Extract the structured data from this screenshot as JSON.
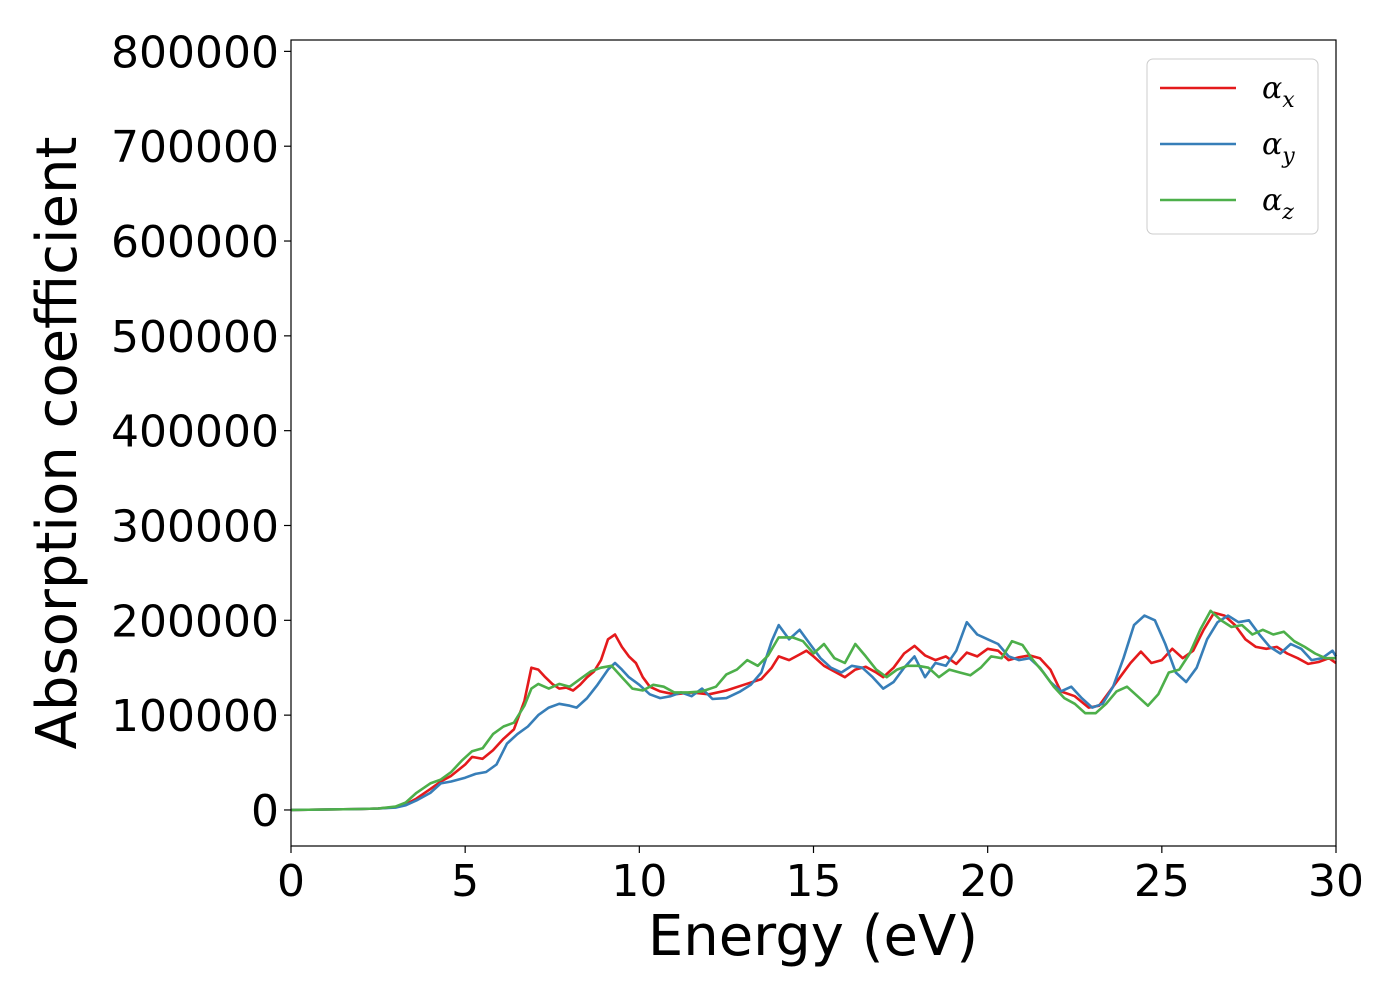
{
  "chart_data": {
    "type": "line",
    "xlabel": "Energy (eV)",
    "ylabel": "Absorption coefficient",
    "xlim": [
      0,
      30
    ],
    "ylim": [
      -38000,
      812000
    ],
    "x_ticks": [
      0,
      5,
      10,
      15,
      20,
      25,
      30
    ],
    "x_tick_labels": [
      "0",
      "5",
      "10",
      "15",
      "20",
      "25",
      "30"
    ],
    "y_ticks": [
      0,
      100000,
      200000,
      300000,
      400000,
      500000,
      600000,
      700000,
      800000
    ],
    "y_tick_labels": [
      "0",
      "100000",
      "200000",
      "300000",
      "400000",
      "500000",
      "600000",
      "700000",
      "800000"
    ],
    "grid": false,
    "legend_position": "top-right",
    "series": [
      {
        "name": "αx",
        "name_base": "α",
        "name_sub": "x",
        "color": "#e41a1c",
        "points": [
          [
            0,
            0
          ],
          [
            1,
            500
          ],
          [
            2,
            1000
          ],
          [
            2.5,
            1500
          ],
          [
            3,
            3000
          ],
          [
            3.3,
            6000
          ],
          [
            3.6,
            12000
          ],
          [
            4,
            22000
          ],
          [
            4.3,
            30000
          ],
          [
            4.6,
            36000
          ],
          [
            5,
            48000
          ],
          [
            5.2,
            56000
          ],
          [
            5.5,
            54000
          ],
          [
            5.8,
            63000
          ],
          [
            6.1,
            75000
          ],
          [
            6.4,
            85000
          ],
          [
            6.7,
            115000
          ],
          [
            6.9,
            150000
          ],
          [
            7.1,
            148000
          ],
          [
            7.3,
            140000
          ],
          [
            7.5,
            133000
          ],
          [
            7.7,
            128000
          ],
          [
            7.9,
            129000
          ],
          [
            8.1,
            126000
          ],
          [
            8.3,
            132000
          ],
          [
            8.5,
            140000
          ],
          [
            8.7,
            146000
          ],
          [
            8.9,
            158000
          ],
          [
            9.1,
            180000
          ],
          [
            9.3,
            185000
          ],
          [
            9.5,
            172000
          ],
          [
            9.7,
            162000
          ],
          [
            9.9,
            155000
          ],
          [
            10.1,
            140000
          ],
          [
            10.3,
            130000
          ],
          [
            10.6,
            125000
          ],
          [
            11,
            122000
          ],
          [
            11.5,
            124000
          ],
          [
            12,
            122000
          ],
          [
            12.5,
            126000
          ],
          [
            13,
            132000
          ],
          [
            13.5,
            138000
          ],
          [
            13.8,
            150000
          ],
          [
            14,
            162000
          ],
          [
            14.3,
            158000
          ],
          [
            14.6,
            164000
          ],
          [
            14.8,
            168000
          ],
          [
            15,
            162000
          ],
          [
            15.3,
            152000
          ],
          [
            15.6,
            146000
          ],
          [
            15.9,
            140000
          ],
          [
            16.2,
            148000
          ],
          [
            16.5,
            151000
          ],
          [
            16.8,
            145000
          ],
          [
            17,
            140000
          ],
          [
            17.3,
            150000
          ],
          [
            17.6,
            165000
          ],
          [
            17.9,
            173000
          ],
          [
            18.2,
            163000
          ],
          [
            18.5,
            158000
          ],
          [
            18.8,
            162000
          ],
          [
            19.1,
            154000
          ],
          [
            19.4,
            166000
          ],
          [
            19.7,
            162000
          ],
          [
            20,
            170000
          ],
          [
            20.3,
            168000
          ],
          [
            20.6,
            158000
          ],
          [
            20.9,
            161000
          ],
          [
            21.2,
            163000
          ],
          [
            21.5,
            160000
          ],
          [
            21.8,
            148000
          ],
          [
            22.1,
            125000
          ],
          [
            22.5,
            120000
          ],
          [
            22.9,
            108000
          ],
          [
            23.2,
            110000
          ],
          [
            23.5,
            125000
          ],
          [
            23.8,
            140000
          ],
          [
            24.1,
            155000
          ],
          [
            24.4,
            167000
          ],
          [
            24.7,
            155000
          ],
          [
            25,
            158000
          ],
          [
            25.3,
            170000
          ],
          [
            25.6,
            160000
          ],
          [
            25.9,
            168000
          ],
          [
            26.2,
            190000
          ],
          [
            26.5,
            208000
          ],
          [
            26.8,
            205000
          ],
          [
            27.1,
            195000
          ],
          [
            27.4,
            180000
          ],
          [
            27.7,
            172000
          ],
          [
            28,
            170000
          ],
          [
            28.3,
            172000
          ],
          [
            28.6,
            165000
          ],
          [
            28.9,
            160000
          ],
          [
            29.2,
            154000
          ],
          [
            29.5,
            156000
          ],
          [
            29.8,
            160000
          ],
          [
            30,
            155000
          ]
        ]
      },
      {
        "name": "αy",
        "name_base": "α",
        "name_sub": "y",
        "color": "#377eb8",
        "points": [
          [
            0,
            0
          ],
          [
            1,
            500
          ],
          [
            2,
            1000
          ],
          [
            2.5,
            1500
          ],
          [
            3,
            2500
          ],
          [
            3.3,
            5000
          ],
          [
            3.6,
            10000
          ],
          [
            4,
            18000
          ],
          [
            4.3,
            28000
          ],
          [
            4.6,
            30000
          ],
          [
            5,
            34000
          ],
          [
            5.3,
            38000
          ],
          [
            5.6,
            40000
          ],
          [
            5.9,
            48000
          ],
          [
            6.2,
            70000
          ],
          [
            6.5,
            80000
          ],
          [
            6.8,
            88000
          ],
          [
            7.1,
            100000
          ],
          [
            7.4,
            108000
          ],
          [
            7.7,
            112000
          ],
          [
            8,
            110000
          ],
          [
            8.2,
            108000
          ],
          [
            8.5,
            118000
          ],
          [
            8.8,
            132000
          ],
          [
            9.1,
            148000
          ],
          [
            9.3,
            155000
          ],
          [
            9.5,
            148000
          ],
          [
            9.7,
            140000
          ],
          [
            10,
            132000
          ],
          [
            10.3,
            122000
          ],
          [
            10.6,
            118000
          ],
          [
            10.9,
            120000
          ],
          [
            11.2,
            124000
          ],
          [
            11.5,
            120000
          ],
          [
            11.8,
            128000
          ],
          [
            12.1,
            117000
          ],
          [
            12.5,
            118000
          ],
          [
            12.9,
            125000
          ],
          [
            13.2,
            132000
          ],
          [
            13.5,
            145000
          ],
          [
            13.8,
            178000
          ],
          [
            14,
            195000
          ],
          [
            14.3,
            180000
          ],
          [
            14.6,
            190000
          ],
          [
            14.9,
            175000
          ],
          [
            15.2,
            160000
          ],
          [
            15.5,
            150000
          ],
          [
            15.8,
            145000
          ],
          [
            16.1,
            152000
          ],
          [
            16.4,
            150000
          ],
          [
            16.7,
            140000
          ],
          [
            17,
            128000
          ],
          [
            17.3,
            135000
          ],
          [
            17.6,
            150000
          ],
          [
            17.9,
            162000
          ],
          [
            18.2,
            140000
          ],
          [
            18.5,
            155000
          ],
          [
            18.8,
            152000
          ],
          [
            19.1,
            168000
          ],
          [
            19.4,
            198000
          ],
          [
            19.7,
            185000
          ],
          [
            20,
            180000
          ],
          [
            20.3,
            175000
          ],
          [
            20.6,
            162000
          ],
          [
            20.9,
            158000
          ],
          [
            21.2,
            160000
          ],
          [
            21.5,
            150000
          ],
          [
            21.8,
            135000
          ],
          [
            22.1,
            125000
          ],
          [
            22.4,
            130000
          ],
          [
            22.7,
            118000
          ],
          [
            23,
            108000
          ],
          [
            23.3,
            112000
          ],
          [
            23.6,
            130000
          ],
          [
            23.9,
            160000
          ],
          [
            24.2,
            195000
          ],
          [
            24.5,
            205000
          ],
          [
            24.8,
            200000
          ],
          [
            25.1,
            175000
          ],
          [
            25.4,
            145000
          ],
          [
            25.7,
            135000
          ],
          [
            26,
            150000
          ],
          [
            26.3,
            180000
          ],
          [
            26.6,
            198000
          ],
          [
            26.9,
            205000
          ],
          [
            27.2,
            198000
          ],
          [
            27.5,
            200000
          ],
          [
            27.8,
            185000
          ],
          [
            28.1,
            172000
          ],
          [
            28.4,
            165000
          ],
          [
            28.7,
            175000
          ],
          [
            29,
            170000
          ],
          [
            29.3,
            158000
          ],
          [
            29.6,
            160000
          ],
          [
            29.9,
            168000
          ],
          [
            30,
            162000
          ]
        ]
      },
      {
        "name": "αz",
        "name_base": "α",
        "name_sub": "z",
        "color": "#4daf4a",
        "points": [
          [
            0,
            0
          ],
          [
            1,
            500
          ],
          [
            2,
            1000
          ],
          [
            2.5,
            1500
          ],
          [
            3,
            3500
          ],
          [
            3.3,
            8000
          ],
          [
            3.6,
            18000
          ],
          [
            4,
            28000
          ],
          [
            4.3,
            32000
          ],
          [
            4.6,
            40000
          ],
          [
            4.9,
            52000
          ],
          [
            5.2,
            62000
          ],
          [
            5.5,
            65000
          ],
          [
            5.8,
            80000
          ],
          [
            6.1,
            88000
          ],
          [
            6.4,
            92000
          ],
          [
            6.7,
            110000
          ],
          [
            6.9,
            128000
          ],
          [
            7.1,
            133000
          ],
          [
            7.4,
            128000
          ],
          [
            7.7,
            133000
          ],
          [
            8,
            130000
          ],
          [
            8.3,
            138000
          ],
          [
            8.6,
            146000
          ],
          [
            8.9,
            150000
          ],
          [
            9.2,
            152000
          ],
          [
            9.5,
            140000
          ],
          [
            9.8,
            128000
          ],
          [
            10.1,
            126000
          ],
          [
            10.4,
            132000
          ],
          [
            10.7,
            130000
          ],
          [
            11,
            124000
          ],
          [
            11.4,
            124000
          ],
          [
            11.8,
            125000
          ],
          [
            12.2,
            130000
          ],
          [
            12.5,
            143000
          ],
          [
            12.8,
            148000
          ],
          [
            13.1,
            158000
          ],
          [
            13.4,
            152000
          ],
          [
            13.7,
            163000
          ],
          [
            14,
            182000
          ],
          [
            14.4,
            182000
          ],
          [
            14.7,
            178000
          ],
          [
            15,
            165000
          ],
          [
            15.3,
            175000
          ],
          [
            15.6,
            160000
          ],
          [
            15.9,
            155000
          ],
          [
            16.2,
            175000
          ],
          [
            16.5,
            162000
          ],
          [
            16.8,
            148000
          ],
          [
            17.1,
            140000
          ],
          [
            17.4,
            148000
          ],
          [
            17.7,
            152000
          ],
          [
            18,
            152000
          ],
          [
            18.3,
            150000
          ],
          [
            18.6,
            140000
          ],
          [
            18.9,
            148000
          ],
          [
            19.2,
            145000
          ],
          [
            19.5,
            142000
          ],
          [
            19.8,
            150000
          ],
          [
            20.1,
            162000
          ],
          [
            20.4,
            160000
          ],
          [
            20.7,
            178000
          ],
          [
            21,
            174000
          ],
          [
            21.3,
            158000
          ],
          [
            21.6,
            145000
          ],
          [
            21.9,
            130000
          ],
          [
            22.2,
            118000
          ],
          [
            22.5,
            112000
          ],
          [
            22.8,
            102000
          ],
          [
            23.1,
            102000
          ],
          [
            23.4,
            112000
          ],
          [
            23.7,
            125000
          ],
          [
            24,
            130000
          ],
          [
            24.3,
            120000
          ],
          [
            24.6,
            110000
          ],
          [
            24.9,
            122000
          ],
          [
            25.2,
            145000
          ],
          [
            25.5,
            148000
          ],
          [
            25.8,
            165000
          ],
          [
            26.1,
            190000
          ],
          [
            26.4,
            210000
          ],
          [
            26.7,
            200000
          ],
          [
            27,
            193000
          ],
          [
            27.3,
            195000
          ],
          [
            27.6,
            185000
          ],
          [
            27.9,
            190000
          ],
          [
            28.2,
            185000
          ],
          [
            28.5,
            188000
          ],
          [
            28.8,
            178000
          ],
          [
            29.1,
            172000
          ],
          [
            29.4,
            165000
          ],
          [
            29.7,
            160000
          ],
          [
            30,
            160000
          ]
        ]
      }
    ]
  }
}
